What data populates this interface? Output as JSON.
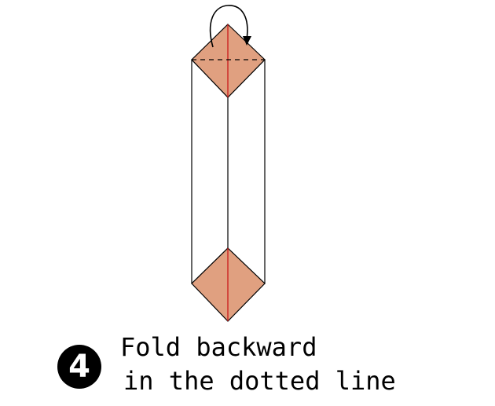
{
  "step": {
    "number": "4"
  },
  "instruction": {
    "line1": "Fold backward",
    "line2": "in the dotted line"
  },
  "colors": {
    "paper_fill": "#e0a080",
    "center_crease": "#cc2222",
    "outline": "#000000",
    "background": "#ffffff"
  },
  "icons": {
    "fold_arrow": "curved-arrow-icon"
  }
}
